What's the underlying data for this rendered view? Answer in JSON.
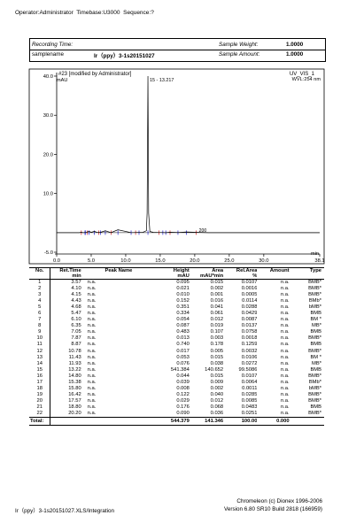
{
  "header": {
    "operator": "Operator:Administrator",
    "timebase": "Timebase:U3000",
    "sequence": "Sequence:?"
  },
  "meta": {
    "recording_time_label": "Recording Time:",
    "recording_time_value": "",
    "samplename_label": "samplename",
    "samplename_value": "Ir（ppy）3-1s20151027",
    "sample_weight_label": "Sample Weight:",
    "sample_weight_value": "1.0000",
    "sample_amount_label": "Sample Amount:",
    "sample_amount_value": "1.0000"
  },
  "chart_data": {
    "type": "line",
    "title": "#23 [modified by Administrator]",
    "title_right": "UV_VIS_1",
    "wavelength": "WVL:254 nm",
    "ylabel": "mAU",
    "xlabel": "min",
    "xlim": [
      0.0,
      38.1
    ],
    "ylim": [
      -5.0,
      40.0
    ],
    "x_ticks": [
      "0.0",
      "5.0",
      "10.0",
      "15.0",
      "20.0",
      "25.0",
      "30.0",
      "38.1"
    ],
    "y_ticks": [
      "-5.0",
      "10.0",
      "20.0",
      "30.0",
      "40.0"
    ],
    "peak_label": "15 - 13.217",
    "baseline_label": "200",
    "series": [
      {
        "x": [
          0.0,
          1.5,
          2.5,
          3.3,
          3.57,
          3.8,
          4.1,
          4.15,
          4.3,
          4.43,
          4.68,
          5.0,
          5.47,
          5.8,
          6.1,
          6.35,
          7.05,
          7.87,
          8.87,
          10.78,
          11.43,
          11.93,
          12.5,
          13.0,
          13.1,
          13.22,
          13.32,
          13.5,
          14.0,
          14.8,
          15.38,
          15.8,
          16.42,
          17.57,
          18.8,
          20.2,
          22.0,
          25.0,
          30.0,
          35.0,
          38.1
        ],
        "y": [
          0.0,
          0.0,
          0.0,
          0.0,
          0.12,
          0.0,
          0.05,
          0.05,
          0.05,
          0.18,
          0.35,
          0.1,
          0.33,
          0.1,
          0.06,
          0.09,
          0.48,
          0.02,
          0.74,
          0.02,
          0.05,
          0.08,
          0.1,
          0.5,
          5.0,
          40.0,
          5.0,
          0.3,
          0.1,
          0.04,
          0.04,
          0.01,
          0.12,
          0.03,
          0.18,
          0.09,
          0.0,
          0.0,
          0.0,
          0.0,
          0.0
        ]
      }
    ],
    "peak_markers_min": [
      3.57,
      4.1,
      4.15,
      4.43,
      4.68,
      5.47,
      6.1,
      6.35,
      7.05,
      7.87,
      8.87,
      10.78,
      11.43,
      11.93,
      13.22,
      14.8,
      15.38,
      15.8,
      16.42,
      17.57,
      18.8,
      20.2
    ]
  },
  "table": {
    "headers": {
      "no": "No.",
      "ret_time": "Ret.Time",
      "ret_time_unit": "min",
      "peak_name": "Peak Name",
      "height": "Height",
      "height_unit": "mAU",
      "area": "Area",
      "area_unit": "mAU*min",
      "rel_area": "Rel.Area",
      "rel_area_unit": "%",
      "amount": "Amount",
      "type": "Type"
    },
    "rows": [
      {
        "no": "1",
        "rt": "3.57",
        "name": "n.a.",
        "height": "0.095",
        "area": "0.015",
        "rel": "0.0107",
        "amount": "n.a.",
        "type": "BMB*"
      },
      {
        "no": "2",
        "rt": "4.10",
        "name": "n.a.",
        "height": "0.021",
        "area": "0.002",
        "rel": "0.0016",
        "amount": "n.a.",
        "type": "BMB*"
      },
      {
        "no": "3",
        "rt": "4.15",
        "name": "n.a.",
        "height": "0.010",
        "area": "0.001",
        "rel": "0.0005",
        "amount": "n.a.",
        "type": "BMB*"
      },
      {
        "no": "4",
        "rt": "4.43",
        "name": "n.a.",
        "height": "0.152",
        "area": "0.016",
        "rel": "0.0114",
        "amount": "n.a.",
        "type": "BMb*"
      },
      {
        "no": "5",
        "rt": "4.68",
        "name": "n.a.",
        "height": "0.351",
        "area": "0.041",
        "rel": "0.0288",
        "amount": "n.a.",
        "type": "bMB*"
      },
      {
        "no": "6",
        "rt": "5.47",
        "name": "n.a.",
        "height": "0.334",
        "area": "0.061",
        "rel": "0.0429",
        "amount": "n.a.",
        "type": "BMB"
      },
      {
        "no": "7",
        "rt": "6.10",
        "name": "n.a.",
        "height": "0.054",
        "area": "0.012",
        "rel": "0.0087",
        "amount": "n.a.",
        "type": "BM *"
      },
      {
        "no": "8",
        "rt": "6.35",
        "name": "n.a.",
        "height": "0.087",
        "area": "0.019",
        "rel": "0.0137",
        "amount": "n.a.",
        "type": "MB*"
      },
      {
        "no": "9",
        "rt": "7.05",
        "name": "n.a.",
        "height": "0.483",
        "area": "0.107",
        "rel": "0.0758",
        "amount": "n.a.",
        "type": "BMB"
      },
      {
        "no": "10",
        "rt": "7.87",
        "name": "n.a.",
        "height": "0.013",
        "area": "0.003",
        "rel": "0.0018",
        "amount": "n.a.",
        "type": "BMB*"
      },
      {
        "no": "11",
        "rt": "8.87",
        "name": "n.a.",
        "height": "0.740",
        "area": "0.178",
        "rel": "0.1259",
        "amount": "n.a.",
        "type": "BMB"
      },
      {
        "no": "12",
        "rt": "10.78",
        "name": "n.a.",
        "height": "0.017",
        "area": "0.005",
        "rel": "0.0032",
        "amount": "n.a.",
        "type": "BMB*"
      },
      {
        "no": "13",
        "rt": "11.43",
        "name": "n.a.",
        "height": "0.053",
        "area": "0.015",
        "rel": "0.0106",
        "amount": "n.a.",
        "type": "BM *"
      },
      {
        "no": "14",
        "rt": "11.93",
        "name": "n.a.",
        "height": "0.076",
        "area": "0.038",
        "rel": "0.0272",
        "amount": "n.a.",
        "type": "MB*"
      },
      {
        "no": "15",
        "rt": "13.22",
        "name": "n.a.",
        "height": "541.384",
        "area": "140.652",
        "rel": "99.5086",
        "amount": "n.a.",
        "type": "BMB"
      },
      {
        "no": "16",
        "rt": "14.80",
        "name": "n.a.",
        "height": "0.044",
        "area": "0.015",
        "rel": "0.0107",
        "amount": "n.a.",
        "type": "BMB*"
      },
      {
        "no": "17",
        "rt": "15.38",
        "name": "n.a.",
        "height": "0.039",
        "area": "0.009",
        "rel": "0.0064",
        "amount": "n.a.",
        "type": "BMb*"
      },
      {
        "no": "18",
        "rt": "15.80",
        "name": "n.a.",
        "height": "0.008",
        "area": "0.002",
        "rel": "0.0011",
        "amount": "n.a.",
        "type": "bMB*"
      },
      {
        "no": "19",
        "rt": "16.42",
        "name": "n.a.",
        "height": "0.122",
        "area": "0.040",
        "rel": "0.0285",
        "amount": "n.a.",
        "type": "BMB*"
      },
      {
        "no": "20",
        "rt": "17.57",
        "name": "n.a.",
        "height": "0.029",
        "area": "0.012",
        "rel": "0.0085",
        "amount": "n.a.",
        "type": "BMB*"
      },
      {
        "no": "21",
        "rt": "18.80",
        "name": "n.a.",
        "height": "0.176",
        "area": "0.068",
        "rel": "0.0483",
        "amount": "n.a.",
        "type": "BMB"
      },
      {
        "no": "22",
        "rt": "20.20",
        "name": "n.a.",
        "height": "0.090",
        "area": "0.036",
        "rel": "0.0251",
        "amount": "n.a.",
        "type": "BMB*"
      }
    ],
    "total": {
      "label": "Total:",
      "height": "544.379",
      "area": "141.346",
      "rel": "100.00",
      "amount": "0.000"
    }
  },
  "footer": {
    "copyright": "Chromeleon (c) Dionex 1996-2006",
    "version": "Version 6.80 SR10 Build 2818 (166959)",
    "path": "Ir（ppy）3-1s20151027.XLS/Integration"
  }
}
